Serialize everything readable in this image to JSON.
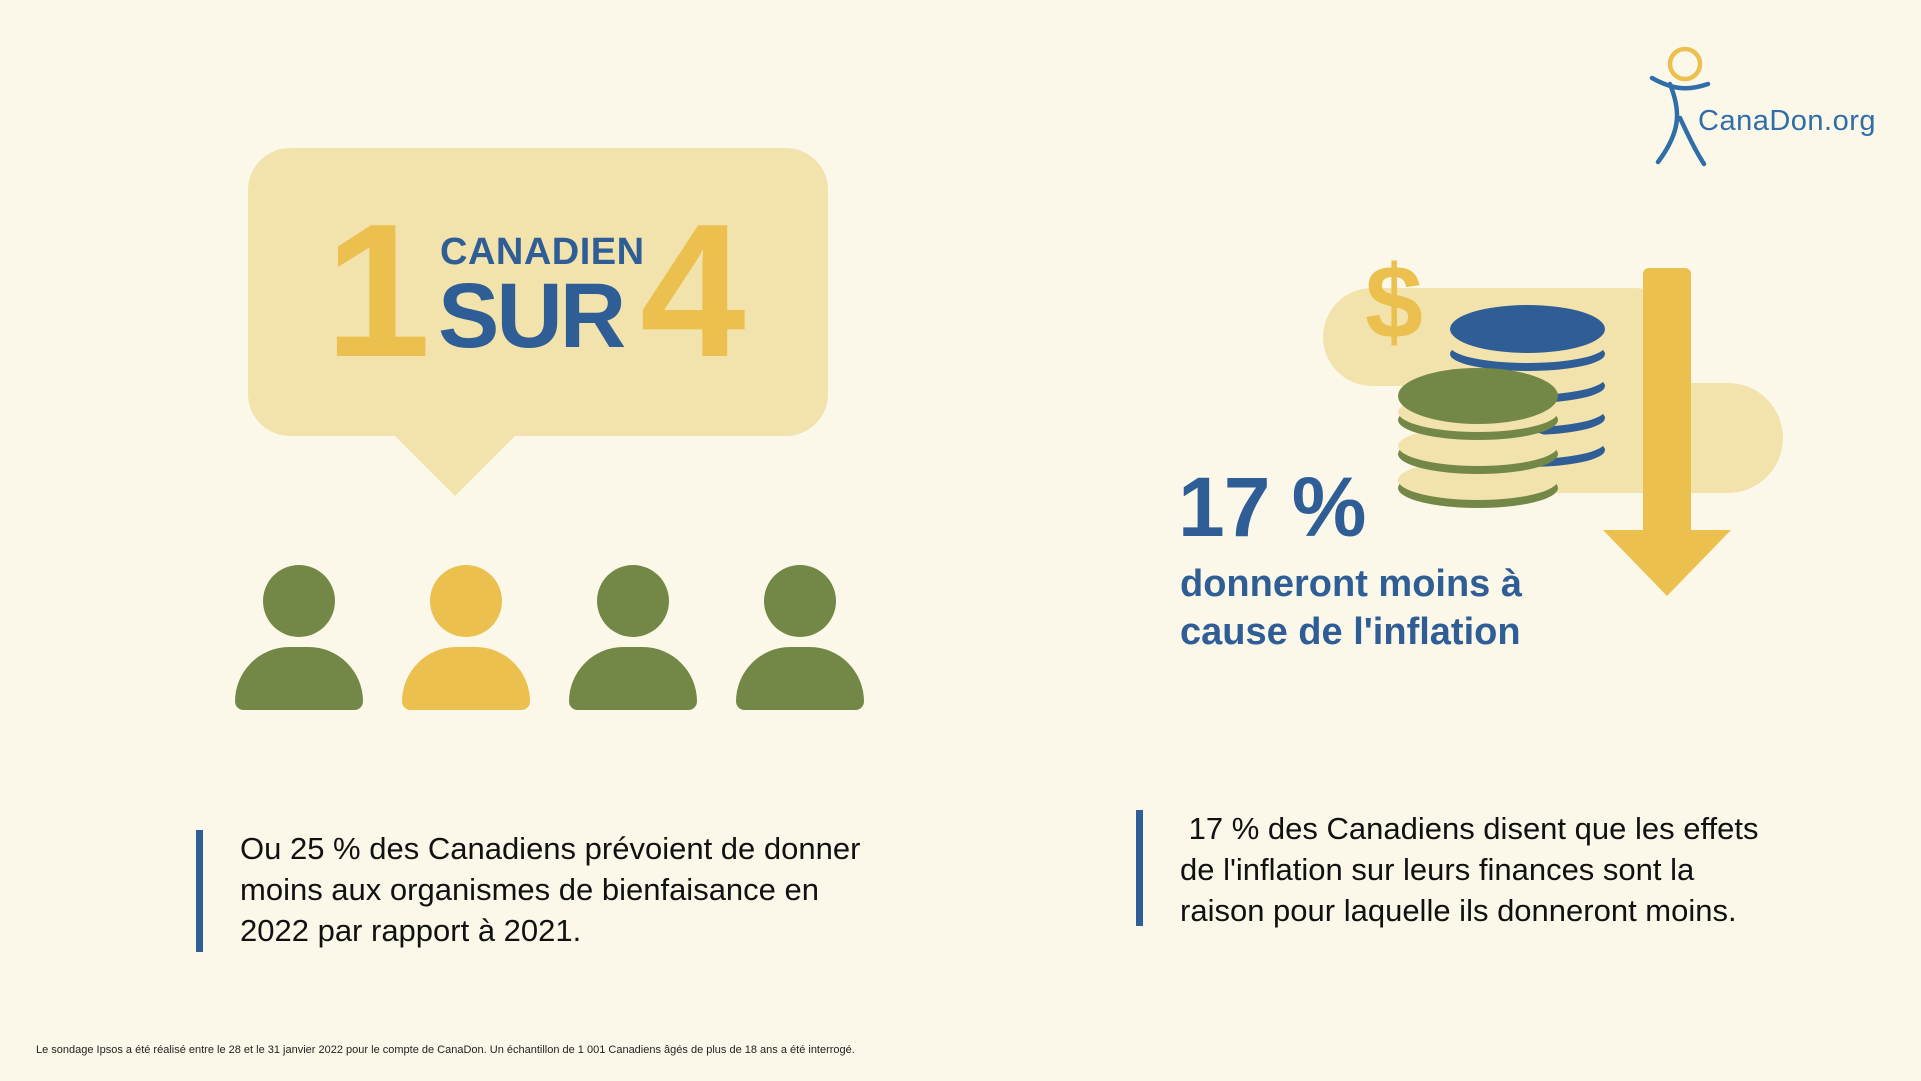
{
  "logo": {
    "text": "CanaDon.org"
  },
  "headline": {
    "number_one": "1",
    "word_top": "CANADIEN",
    "word_bottom": "SUR",
    "number_four": "4"
  },
  "people": [
    {
      "highlighted": false
    },
    {
      "highlighted": true
    },
    {
      "highlighted": false
    },
    {
      "highlighted": false
    }
  ],
  "left_quote": {
    "lines": [
      "Ou 25 % des Canadiens prévoient de donner",
      "moins aux organismes de bienfaisance en",
      "2022 par rapport à 2021."
    ]
  },
  "stat": {
    "value": "17 %",
    "caption_lines": [
      "donneront moins à",
      "cause de l'inflation"
    ],
    "dollar_sign": "$"
  },
  "right_quote": {
    "lines": [
      " 17 % des Canadiens disent que les effets",
      "de l'inflation sur leurs finances sont la",
      "raison pour laquelle ils donneront moins."
    ]
  },
  "footnote": "Le sondage Ipsos a été réalisé entre le 28 et le 31 janvier 2022 pour le compte de CanaDon. Un échantillon de 1 001 Canadiens âgés de plus de 18 ans a été interrogé.",
  "colors": {
    "background": "#fbf8e9",
    "blue": "#2f5d96",
    "yellow": "#ecc04e",
    "green": "#738746",
    "pale": "#f2e3ad"
  }
}
